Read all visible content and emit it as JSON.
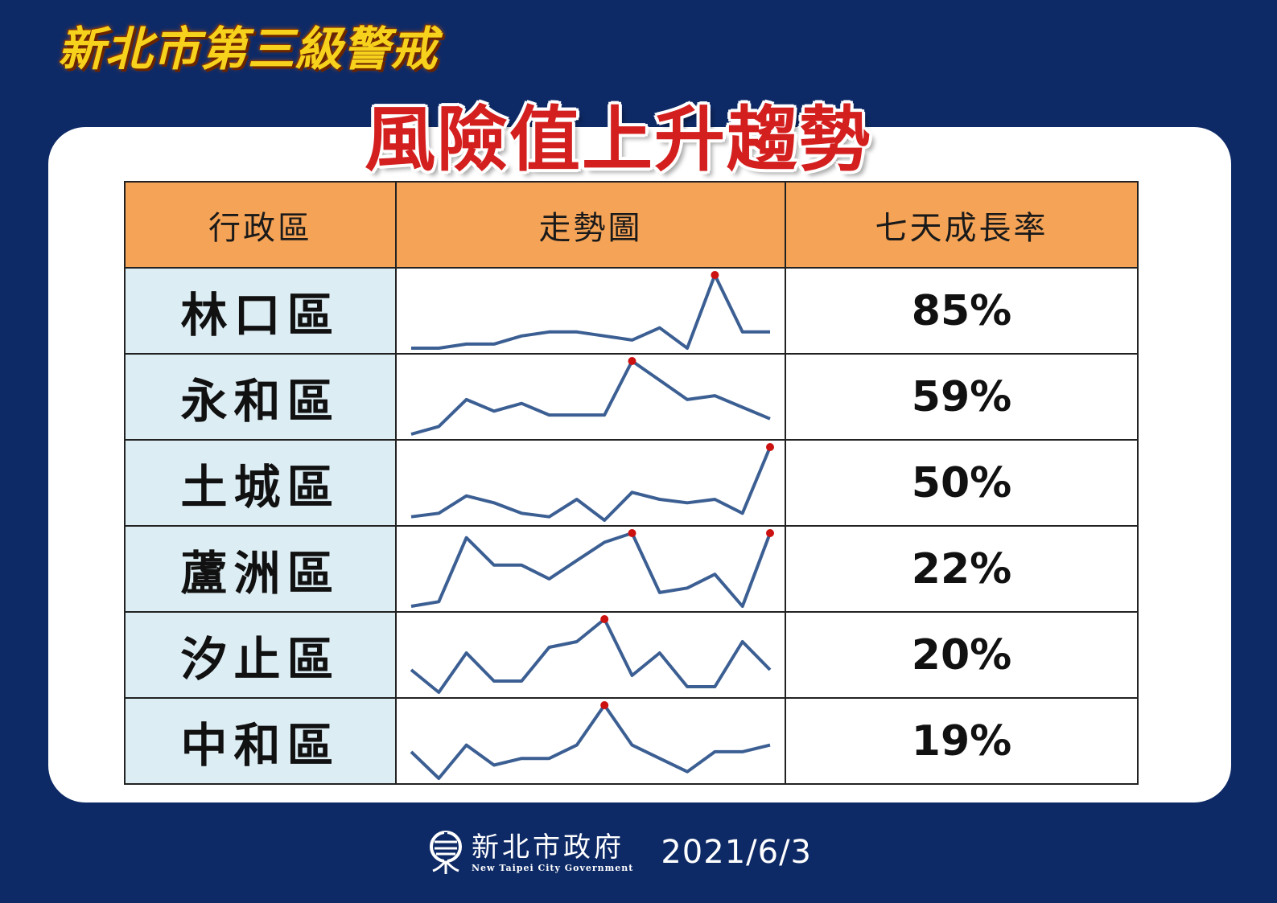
{
  "header": {
    "top_title": "新北市第三級警戒",
    "main_title": "風險值上升趨勢"
  },
  "table": {
    "columns": [
      "行政區",
      "走勢圖",
      "七天成長率"
    ]
  },
  "chart_data": {
    "type": "table",
    "title": "風險值上升趨勢",
    "rows": [
      {
        "district": "林口區",
        "rate": "85%",
        "trend": [
          1,
          1,
          2,
          2,
          4,
          5,
          5,
          4,
          3,
          6,
          1,
          19,
          5,
          5
        ],
        "peaks": [
          11
        ]
      },
      {
        "district": "永和區",
        "rate": "59%",
        "trend": [
          1,
          3,
          10,
          7,
          9,
          6,
          6,
          6,
          20,
          15,
          10,
          11,
          8,
          5
        ],
        "peaks": [
          8
        ]
      },
      {
        "district": "土城區",
        "rate": "50%",
        "trend": [
          2,
          3,
          8,
          6,
          3,
          2,
          7,
          1,
          9,
          7,
          6,
          7,
          3,
          22
        ],
        "peaks": [
          13
        ]
      },
      {
        "district": "蘆洲區",
        "rate": "22%",
        "trend": [
          1,
          2,
          16,
          10,
          10,
          7,
          11,
          15,
          17,
          4,
          5,
          8,
          1,
          17
        ],
        "peaks": [
          8,
          13
        ]
      },
      {
        "district": "汐止區",
        "rate": "20%",
        "trend": [
          5,
          1,
          8,
          3,
          3,
          9,
          10,
          14,
          4,
          8,
          2,
          2,
          10,
          5
        ],
        "peaks": [
          7
        ]
      },
      {
        "district": "中和區",
        "rate": "19%",
        "trend": [
          5,
          1,
          6,
          3,
          4,
          4,
          6,
          12,
          6,
          4,
          2,
          5,
          5,
          6
        ],
        "peaks": [
          7
        ]
      }
    ]
  },
  "footer": {
    "org_name": "新北市政府",
    "org_name_en": "New Taipei City Government",
    "date": "2021/6/3"
  },
  "colors": {
    "background": "#0e2a66",
    "header_cell": "#f5a356",
    "district_cell": "#dcedf4",
    "sparkline": "#3c5f93",
    "peak_marker": "#cc1111",
    "main_title": "#d41f1f",
    "top_title": "#f7d21c"
  }
}
